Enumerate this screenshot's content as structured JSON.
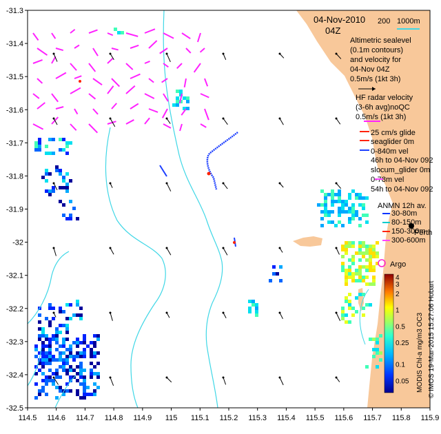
{
  "map": {
    "lon_range": [
      114.5,
      115.9
    ],
    "lat_range": [
      -32.5,
      -31.3
    ],
    "x_ticks": [
      "114.5",
      "114.6",
      "114.7",
      "114.8",
      "114.9",
      "115",
      "115.1",
      "115.2",
      "115.3",
      "115.4",
      "115.5",
      "115.6",
      "115.7",
      "115.8",
      "115.9"
    ],
    "y_ticks": [
      "-31.3",
      "-31.4",
      "-31.5",
      "-31.6",
      "-31.7",
      "-31.8",
      "-31.9",
      "-32",
      "-32.1",
      "-32.2",
      "-32.3",
      "-32.4",
      "-32.5"
    ],
    "land_color": "#f8c89a",
    "contour_color": "#3fd7e6",
    "hf_arrow_color": "#ff22ff"
  },
  "legend": {
    "date": "04-Nov-2010",
    "time": "04Z",
    "scale_labels": [
      "200",
      "1000m"
    ],
    "altimetry_lines": [
      "Altimetric sealevel",
      "(0.1m contours)",
      "and velocity for",
      "04-Nov 04Z",
      "0.5m/s (1kt 3h)"
    ],
    "hf_lines": [
      "HF radar velocity",
      "(3-6h avg)noQC",
      "0.5m/s (1kt 3h)"
    ],
    "glider_lines": [
      "25 cm/s glide",
      "seaglider 0m",
      "0-840m vel",
      "46h to 04-Nov 092",
      "slocum_glider 0m",
      "0-78m vel",
      "54h to 04-Nov 092"
    ],
    "anmn_title": "ANMN 12h av.",
    "anmn_items": [
      {
        "label": "30-80m",
        "color": "#0033ff"
      },
      {
        "label": "80-150m",
        "color": "#00cccc"
      },
      {
        "label": "150-300m",
        "color": "#ff2200"
      },
      {
        "label": "300-600m",
        "color": "#ff44ff"
      }
    ],
    "perth_label": "Perth",
    "argo_label": "Argo",
    "argo_color": "#ff22cc"
  },
  "colorbar": {
    "labels": [
      "4",
      "3",
      "2",
      "1",
      "0.5",
      "0.25",
      "0.1",
      "0.05"
    ],
    "title": "MODIS Chl-a mg/m3 OC3"
  },
  "credit": "© IMOS 19-Mar-2015 15:27:06 Hobart"
}
